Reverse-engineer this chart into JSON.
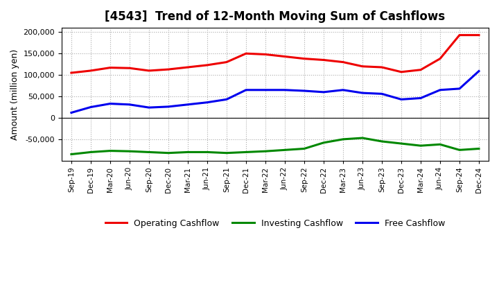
{
  "title": "[4543]  Trend of 12-Month Moving Sum of Cashflows",
  "ylabel": "Amount (million yen)",
  "ylim": [
    -100000,
    210000
  ],
  "yticks": [
    -50000,
    0,
    50000,
    100000,
    150000,
    200000
  ],
  "background_color": "#ffffff",
  "grid_color": "#aaaaaa",
  "x_labels": [
    "Sep-19",
    "Dec-19",
    "Mar-20",
    "Jun-20",
    "Sep-20",
    "Dec-20",
    "Mar-21",
    "Jun-21",
    "Sep-21",
    "Dec-21",
    "Mar-22",
    "Jun-22",
    "Sep-22",
    "Dec-22",
    "Mar-23",
    "Jun-23",
    "Sep-23",
    "Dec-23",
    "Mar-24",
    "Jun-24",
    "Sep-24",
    "Dec-24"
  ],
  "operating": [
    105000,
    110000,
    117000,
    116000,
    110000,
    113000,
    118000,
    123000,
    130000,
    150000,
    148000,
    143000,
    138000,
    135000,
    130000,
    120000,
    118000,
    107000,
    112000,
    138000,
    193000,
    193000
  ],
  "investing": [
    -85000,
    -80000,
    -77000,
    -78000,
    -80000,
    -82000,
    -80000,
    -80000,
    -82000,
    -80000,
    -78000,
    -75000,
    -72000,
    -58000,
    -50000,
    -47000,
    -55000,
    -60000,
    -65000,
    -62000,
    -75000,
    -72000
  ],
  "free": [
    12000,
    25000,
    33000,
    31000,
    24000,
    26000,
    31000,
    36000,
    43000,
    65000,
    65000,
    65000,
    63000,
    60000,
    65000,
    58000,
    56000,
    43000,
    46000,
    65000,
    68000,
    109000
  ],
  "op_color": "#ee0000",
  "inv_color": "#008800",
  "free_color": "#0000ee",
  "linewidth": 2.2
}
